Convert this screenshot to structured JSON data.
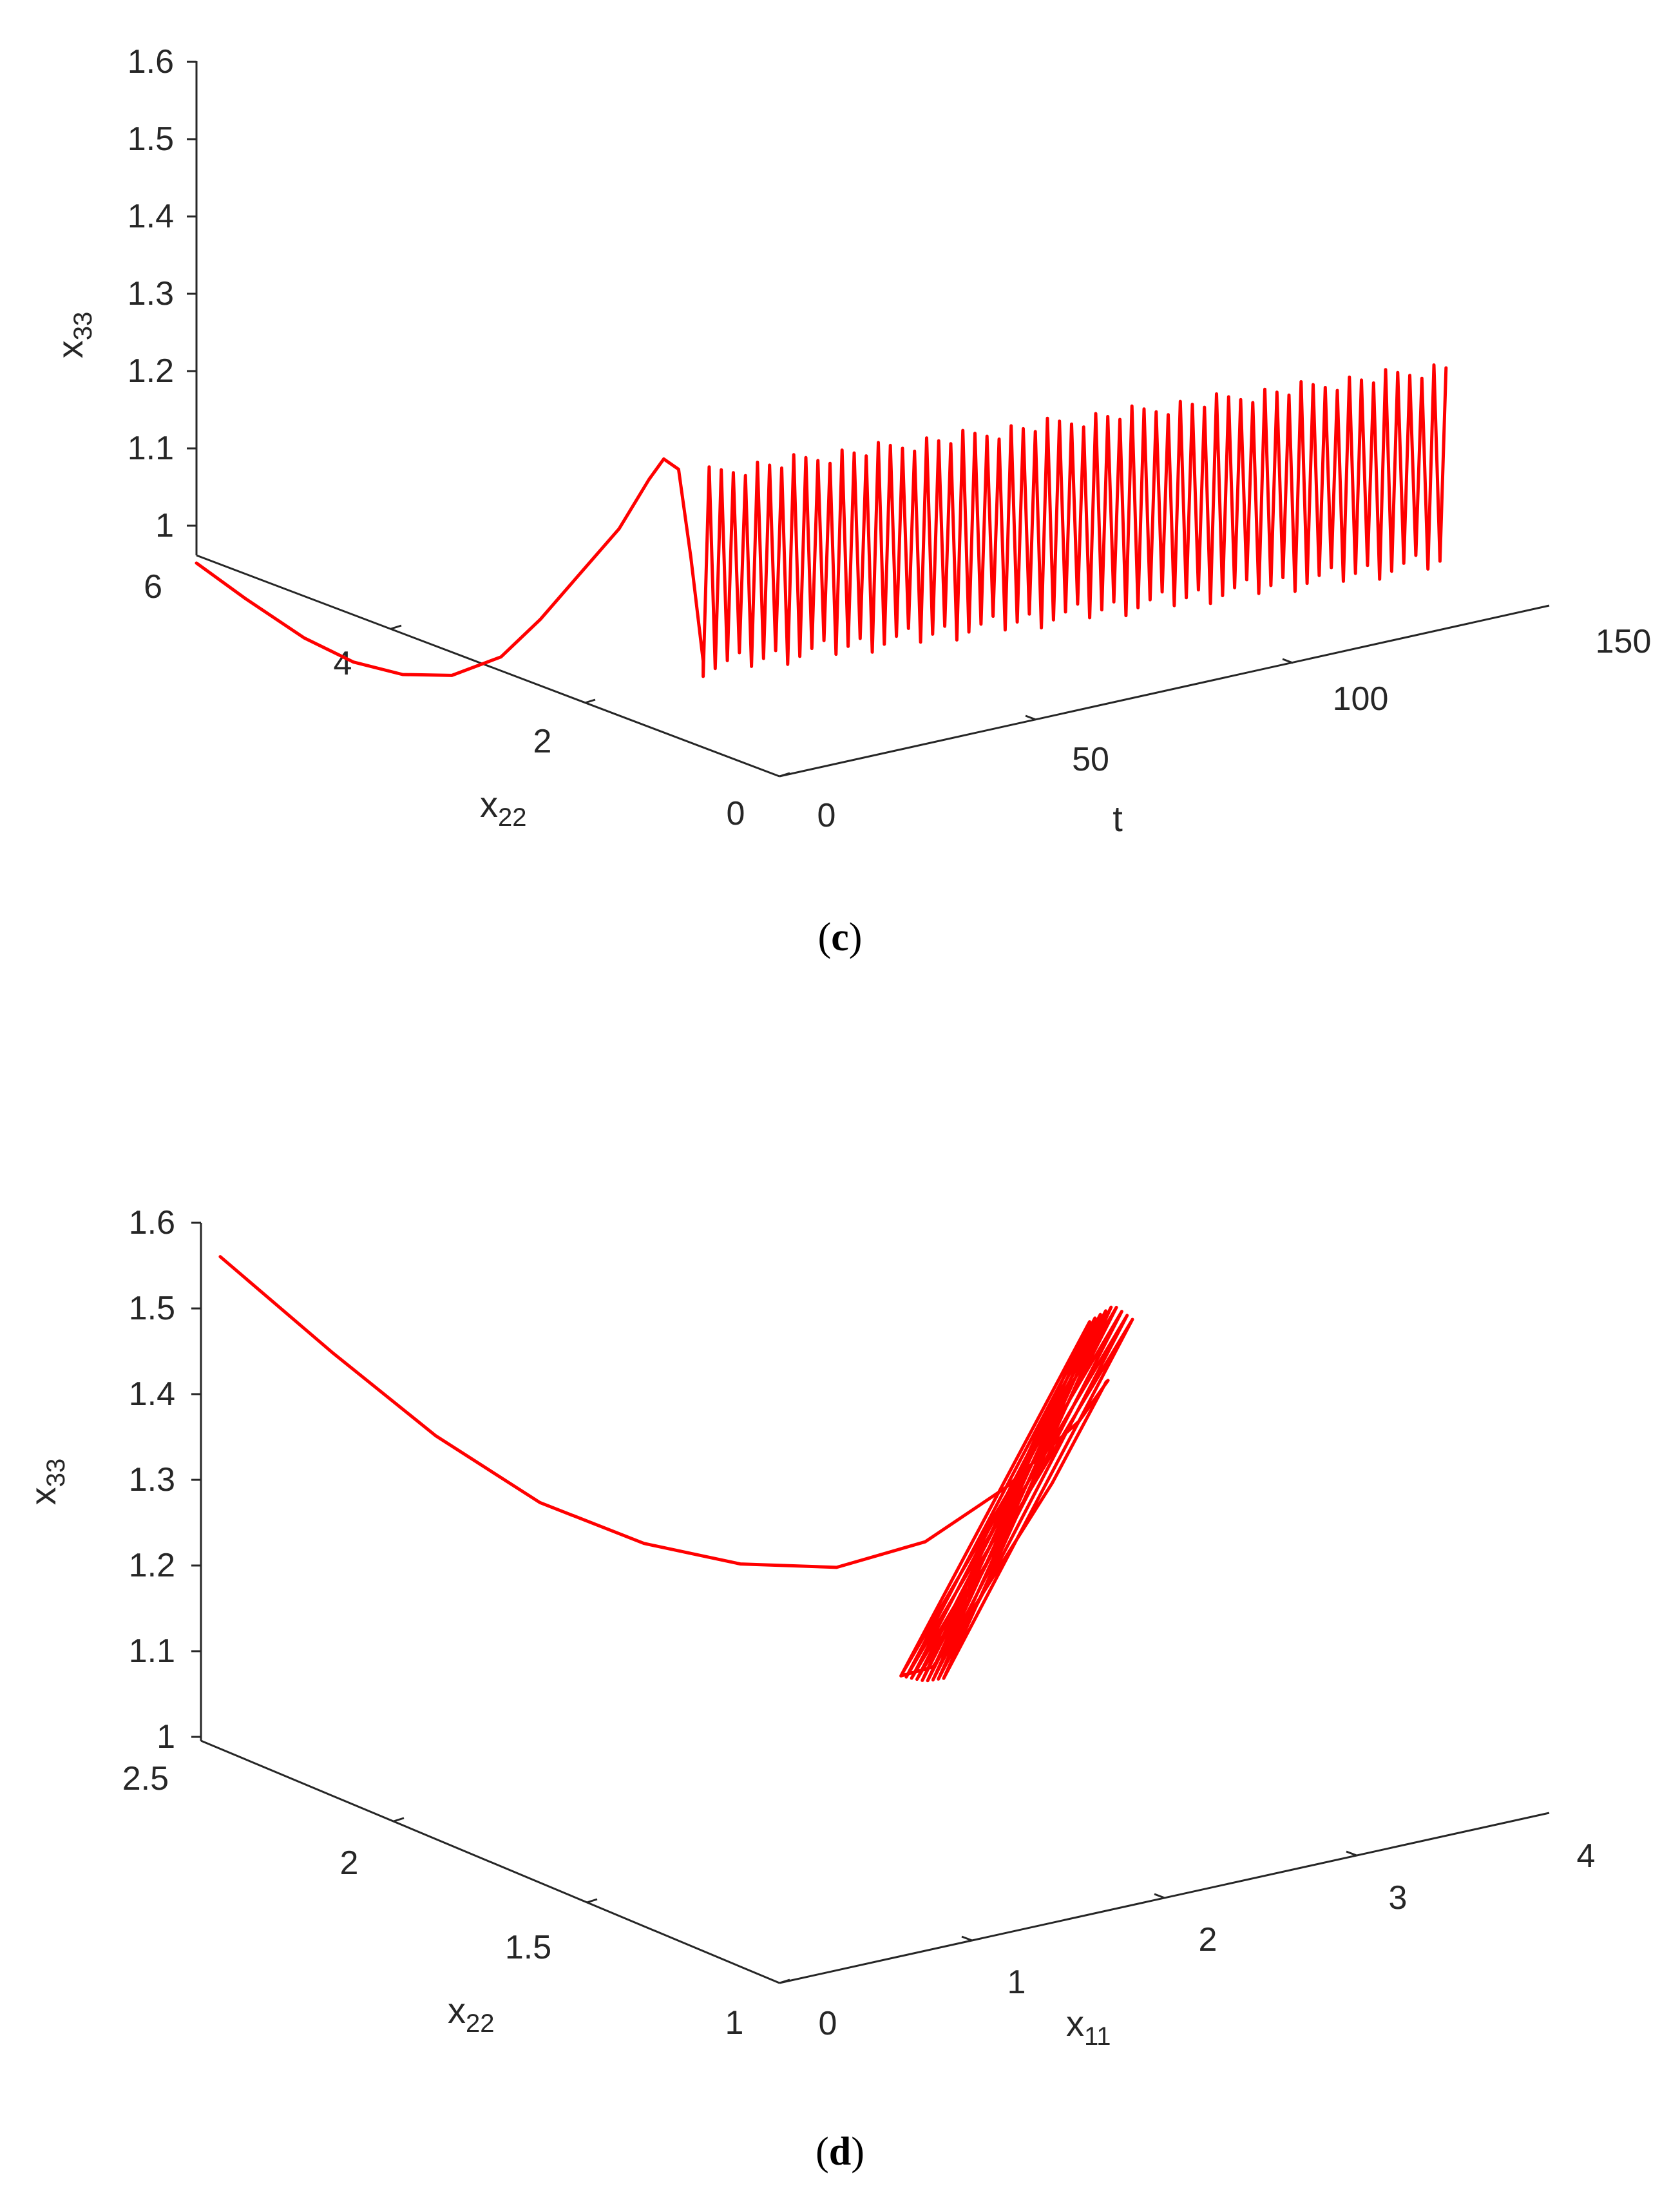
{
  "colors": {
    "trajectory": "#ff0000",
    "axis": "#262626"
  },
  "chart_data": [
    {
      "type": "line3d",
      "caption_letter": "c",
      "axes": {
        "z": {
          "label_base": "x",
          "label_sub": "33",
          "range": [
            1,
            1.6
          ],
          "ticks": [
            "1",
            "1.1",
            "1.2",
            "1.3",
            "1.4",
            "1.5",
            "1.6"
          ]
        },
        "y": {
          "label_base": "x",
          "label_sub": "22",
          "range": [
            0,
            6
          ],
          "ticks": [
            "0",
            "2",
            "4",
            "6"
          ]
        },
        "x": {
          "label_base": "t",
          "label_sub": "",
          "range": [
            0,
            150
          ],
          "ticks": [
            "0",
            "50",
            "100",
            "150"
          ]
        }
      },
      "series": [
        {
          "description": "initial transient from (t=0, x22=6, x33~0.99) dipping then rising to a peak near 1.27 before entering sustained oscillation",
          "transient": [
            [
              0,
              6.0,
              0.99
            ],
            [
              2,
              5.6,
              0.96
            ],
            [
              4,
              5.1,
              0.93
            ],
            [
              6,
              4.7,
              0.915
            ],
            [
              8,
              4.3,
              0.915
            ],
            [
              10,
              3.9,
              0.93
            ],
            [
              12,
              3.5,
              0.97
            ],
            [
              14,
              3.2,
              1.03
            ],
            [
              16,
              2.9,
              1.1
            ],
            [
              18,
              2.6,
              1.17
            ],
            [
              20,
              2.4,
              1.24
            ],
            [
              21,
              2.3,
              1.27
            ],
            [
              22,
              2.2,
              1.26
            ],
            [
              22.5,
              2.1,
              1.15
            ],
            [
              23,
              2.0,
              1.02
            ]
          ],
          "oscillation": {
            "t_start": 23,
            "t_end": 150,
            "x22_start": 2.0,
            "x22_end": 1.0,
            "z_min": 1.0,
            "z_max": 1.27,
            "cycles": 62
          }
        }
      ]
    },
    {
      "type": "line3d",
      "caption_letter": "d",
      "axes": {
        "z": {
          "label_base": "x",
          "label_sub": "33",
          "range": [
            1,
            1.6
          ],
          "ticks": [
            "1",
            "1.1",
            "1.2",
            "1.3",
            "1.4",
            "1.5",
            "1.6"
          ]
        },
        "y": {
          "label_base": "x",
          "label_sub": "22",
          "range": [
            1,
            2.5
          ],
          "ticks": [
            "1",
            "1.5",
            "2",
            "2.5"
          ]
        },
        "x": {
          "label_base": "x",
          "label_sub": "11",
          "range": [
            0,
            4
          ],
          "ticks": [
            "0",
            "1",
            "2",
            "3",
            "4"
          ]
        }
      },
      "series": [
        {
          "description": "phase portrait: transient curve from upper left to a loop on the right, then a dense limit-cycle band",
          "transient": [
            [
              0.1,
              2.5,
              1.56
            ],
            [
              0.4,
              2.36,
              1.46
            ],
            [
              0.7,
              2.24,
              1.37
            ],
            [
              1.0,
              2.12,
              1.3
            ],
            [
              1.3,
              2.0,
              1.26
            ],
            [
              1.6,
              1.9,
              1.24
            ],
            [
              1.9,
              1.8,
              1.24
            ],
            [
              2.2,
              1.72,
              1.27
            ],
            [
              2.5,
              1.66,
              1.33
            ],
            [
              2.8,
              1.62,
              1.4
            ],
            [
              2.95,
              1.62,
              1.44
            ],
            [
              3.0,
              1.65,
              1.43
            ],
            [
              2.9,
              1.74,
              1.3
            ],
            [
              2.7,
              1.86,
              1.13
            ],
            [
              2.6,
              1.9,
              1.07
            ]
          ],
          "limit_cycle": {
            "cycles": 16,
            "z_min": 1.05,
            "z_max": 1.48
          }
        }
      ]
    }
  ]
}
